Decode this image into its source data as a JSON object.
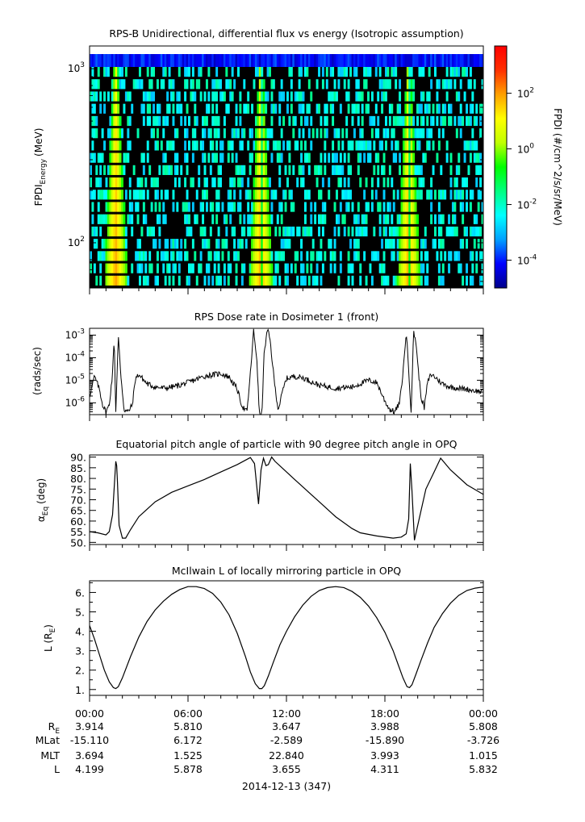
{
  "chart_data": [
    {
      "type": "heatmap",
      "title": "RPS-B  Unidirectional, differential flux vs energy (Isotropic assumption)",
      "ylabel_main": "FPDI",
      "ylabel_sub": "Energy",
      "ylabel_unit": "(MeV)",
      "y_scale": "log",
      "ylim": [
        55,
        1350
      ],
      "y_ticks": [
        {
          "v": 100,
          "base": "10",
          "exp": "2"
        },
        {
          "v": 1000,
          "base": "10",
          "exp": "3"
        }
      ],
      "xlim_hours": [
        0,
        24
      ],
      "colorbar": {
        "label": "FPDI (#/cm^2/s/sr/MeV)",
        "scale": "log",
        "range": [
          1e-05,
          5000
        ],
        "ticks": [
          {
            "v": 0.0001,
            "base": "10",
            "exp": "-4"
          },
          {
            "v": 0.01,
            "base": "10",
            "exp": "-2"
          },
          {
            "v": 1,
            "base": "10",
            "exp": "0"
          },
          {
            "v": 100,
            "base": "10",
            "exp": "2"
          }
        ],
        "colors": [
          "#00008b",
          "#0000ff",
          "#00a0ff",
          "#00ffff",
          "#00ff80",
          "#00ff00",
          "#c0ff00",
          "#ffff00",
          "#ffa000",
          "#ff3000",
          "#ff0000"
        ]
      },
      "enhancement_bands_hours": [
        {
          "center": 1.6,
          "peak_left": 1.4,
          "peak_right": 1.75,
          "dip": 1.55
        },
        {
          "center": 10.45,
          "peak_left": 10.2,
          "peak_right": 10.8,
          "dip": 10.5
        },
        {
          "center": 19.45,
          "peak_left": 19.25,
          "peak_right": 19.7,
          "dip": 19.5
        }
      ]
    },
    {
      "type": "line",
      "title": "RPS  Dose rate in Dosimeter 1 (front)",
      "ylabel": "(rads/sec)",
      "y_scale": "log",
      "ylim": [
        3e-07,
        0.002
      ],
      "y_ticks": [
        {
          "v": 1e-06,
          "base": "10",
          "exp": "-6"
        },
        {
          "v": 1e-05,
          "base": "10",
          "exp": "-5"
        },
        {
          "v": 0.0001,
          "base": "10",
          "exp": "-4"
        },
        {
          "v": 0.001,
          "base": "10",
          "exp": "-3"
        }
      ],
      "series": [
        {
          "x_hours": [
            0.0,
            0.3,
            0.6,
            0.8,
            1.0,
            1.2,
            1.4,
            1.5,
            1.6,
            1.75,
            1.9,
            2.1,
            2.35,
            2.6,
            2.8,
            3.0,
            3.5,
            4.0,
            4.5,
            5.0,
            5.5,
            6.0,
            7.0,
            8.0,
            8.5,
            9.0,
            9.3,
            9.6,
            9.8,
            10.0,
            10.2,
            10.35,
            10.5,
            10.65,
            10.85,
            11.0,
            11.3,
            11.5,
            11.8,
            12.0,
            12.5,
            13.0,
            14.0,
            15.0,
            16.0,
            17.0,
            17.5,
            18.0,
            18.3,
            18.6,
            18.9,
            19.1,
            19.3,
            19.45,
            19.6,
            19.75,
            19.9,
            20.0,
            20.2,
            20.4,
            20.6,
            20.8,
            21.0,
            21.5,
            22.0,
            23.0,
            24.0
          ],
          "y": [
            2e-06,
            1.5e-05,
            4e-06,
            8e-07,
            4e-07,
            8e-07,
            2e-05,
            0.0009,
            4e-07,
            0.0009,
            2e-05,
            5e-07,
            4e-07,
            8e-07,
            1.2e-05,
            1.8e-05,
            7e-06,
            5e-06,
            4.5e-06,
            5e-06,
            6e-06,
            8e-06,
            1.5e-05,
            2e-05,
            1.4e-05,
            4e-06,
            7e-07,
            4e-07,
            2e-05,
            0.0015,
            8e-05,
            3e-07,
            3e-07,
            0.0002,
            0.0018,
            0.0006,
            5e-06,
            5e-07,
            4e-06,
            1.2e-05,
            1.5e-05,
            1.3e-05,
            6e-06,
            4.5e-06,
            5e-06,
            1e-05,
            8e-06,
            1.2e-06,
            5e-07,
            4e-07,
            1e-06,
            2e-05,
            0.0014,
            3e-05,
            4e-07,
            0.0014,
            0.0005,
            5e-05,
            2e-06,
            6e-07,
            8e-06,
            1.8e-05,
            1.5e-05,
            7e-06,
            5e-06,
            4e-06,
            3e-06
          ]
        }
      ]
    },
    {
      "type": "line",
      "title": "Equatorial pitch angle of particle with 90 degree pitch angle in OPQ",
      "ylabel_main": "α",
      "ylabel_sub": "Eq",
      "ylabel_unit": "(deg)",
      "ylim": [
        49,
        91
      ],
      "y_ticks": [
        "50.",
        "55.",
        "60.",
        "65.",
        "70.",
        "75.",
        "80.",
        "85.",
        "90."
      ],
      "series": [
        {
          "x_hours": [
            0.0,
            0.5,
            1.0,
            1.2,
            1.4,
            1.6,
            1.65,
            1.7,
            1.8,
            2.0,
            2.2,
            2.5,
            3.0,
            4.0,
            5.0,
            6.0,
            7.0,
            8.0,
            9.0,
            9.8,
            10.05,
            10.3,
            10.45,
            10.6,
            10.75,
            10.9,
            11.1,
            11.3,
            11.8,
            12.5,
            13.0,
            14.0,
            15.0,
            16.0,
            16.5,
            17.5,
            18.5,
            19.0,
            19.3,
            19.45,
            19.55,
            19.65,
            19.8,
            20.0,
            20.5,
            21.0,
            21.4,
            22.0,
            23.0,
            24.0
          ],
          "y": [
            55,
            54.5,
            53.5,
            55,
            63,
            88,
            86,
            78,
            58,
            52,
            52,
            56,
            62,
            69,
            73.5,
            76.5,
            79.5,
            83,
            86.5,
            89.8,
            87,
            68,
            84,
            89.5,
            86,
            86.5,
            90,
            88,
            84.5,
            79.5,
            76,
            69,
            62,
            56.5,
            54.5,
            53,
            52,
            52.5,
            54,
            61,
            87,
            74,
            51,
            58,
            75,
            83,
            89.5,
            84,
            77,
            72.5
          ]
        }
      ]
    },
    {
      "type": "line",
      "title": "McIlwain L of locally mirroring particle in OPQ",
      "ylabel_main": "L (R",
      "ylabel_sub": "E",
      "ylabel_unit": ")",
      "ylim": [
        0.7,
        6.6
      ],
      "y_ticks": [
        "1.",
        "2.",
        "3.",
        "4.",
        "5.",
        "6."
      ],
      "series": [
        {
          "x_hours": [
            0.0,
            0.3,
            0.6,
            0.9,
            1.2,
            1.45,
            1.6,
            1.75,
            2.0,
            2.5,
            3.0,
            3.5,
            4.0,
            4.5,
            5.0,
            5.5,
            6.0,
            6.5,
            7.0,
            7.5,
            8.0,
            8.5,
            9.0,
            9.5,
            9.8,
            10.1,
            10.35,
            10.5,
            10.65,
            10.9,
            11.2,
            11.6,
            12.0,
            12.5,
            13.0,
            13.5,
            14.0,
            14.5,
            15.0,
            15.5,
            16.0,
            16.5,
            17.0,
            17.5,
            18.0,
            18.5,
            18.8,
            19.1,
            19.35,
            19.5,
            19.65,
            19.9,
            20.2,
            20.6,
            21.0,
            21.5,
            22.0,
            22.5,
            23.0,
            23.5,
            24.0
          ],
          "y": [
            4.3,
            3.6,
            2.8,
            2.0,
            1.4,
            1.1,
            1.05,
            1.15,
            1.6,
            2.7,
            3.7,
            4.5,
            5.1,
            5.55,
            5.9,
            6.15,
            6.3,
            6.3,
            6.2,
            5.95,
            5.5,
            4.85,
            3.9,
            2.7,
            1.9,
            1.3,
            1.05,
            1.05,
            1.2,
            1.7,
            2.4,
            3.3,
            4.0,
            4.75,
            5.35,
            5.8,
            6.1,
            6.25,
            6.3,
            6.25,
            6.05,
            5.75,
            5.3,
            4.7,
            3.95,
            3.0,
            2.3,
            1.6,
            1.15,
            1.1,
            1.25,
            1.8,
            2.5,
            3.4,
            4.2,
            4.9,
            5.45,
            5.85,
            6.1,
            6.22,
            6.28
          ]
        }
      ]
    }
  ],
  "x_axis": {
    "tick_labels": [
      "00:00",
      "06:00",
      "12:00",
      "18:00",
      "00:00"
    ],
    "date_label": "2014-12-13 (347)"
  },
  "ephemeris": {
    "rows": [
      {
        "label": "R",
        "label_sub": "E",
        "values": [
          "3.914",
          "5.810",
          "3.647",
          "3.988",
          "5.808"
        ]
      },
      {
        "label": "MLat",
        "label_sub": "",
        "values": [
          "-15.110",
          "6.172",
          "-2.589",
          "-15.890",
          "-3.726"
        ]
      },
      {
        "label": "MLT",
        "label_sub": "",
        "values": [
          "3.694",
          "1.525",
          "22.840",
          "3.993",
          "1.015"
        ]
      },
      {
        "label": "L",
        "label_sub": "",
        "values": [
          "4.199",
          "5.878",
          "3.655",
          "4.311",
          "5.832"
        ]
      }
    ]
  }
}
